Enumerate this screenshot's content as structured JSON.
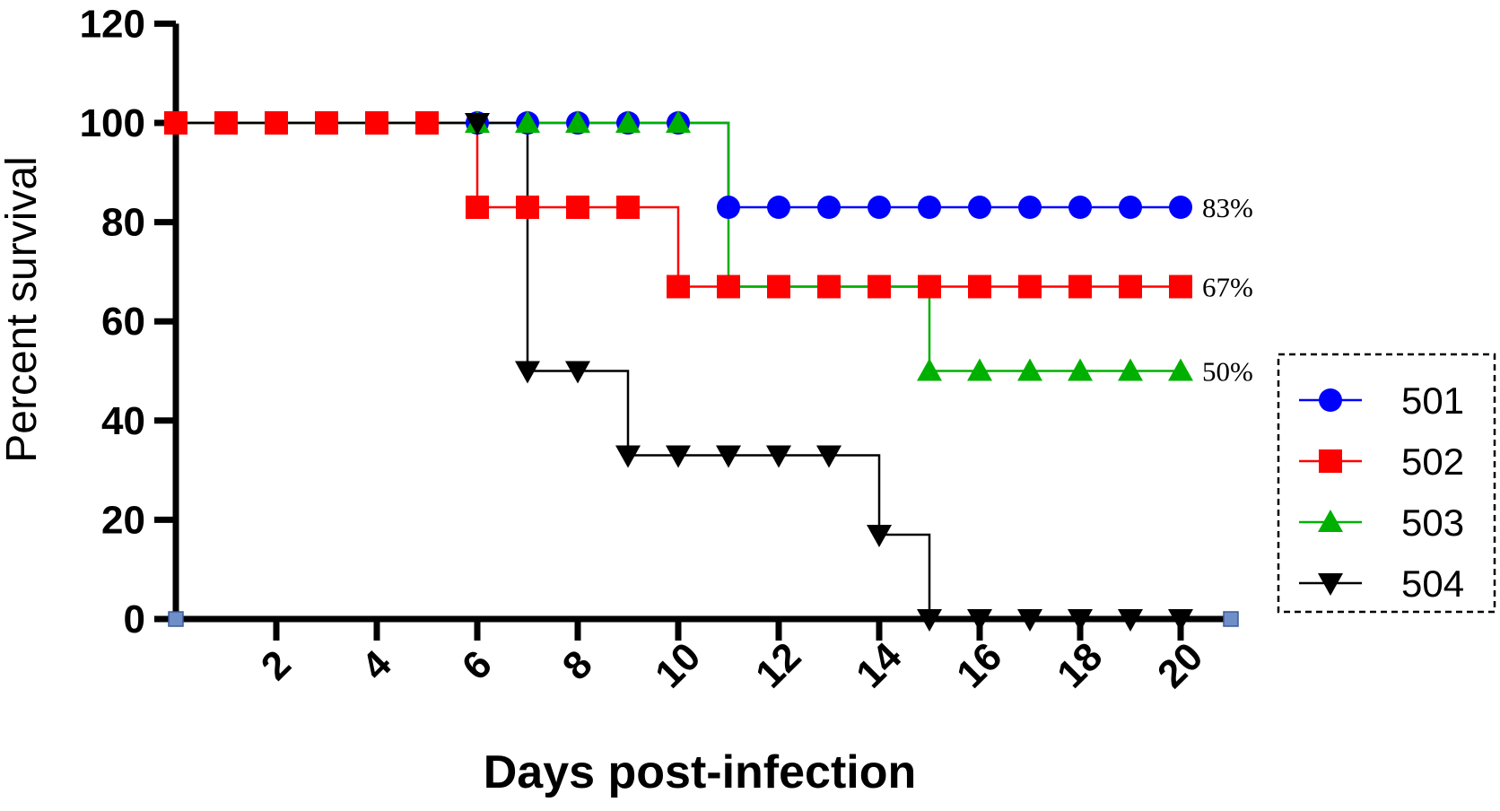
{
  "chart_data": {
    "type": "line",
    "subtype": "kaplan-meier step survival curve",
    "xlabel": "Days post-infection",
    "ylabel": "Percent survival",
    "xlim": [
      0,
      21
    ],
    "ylim": [
      0,
      120
    ],
    "x_ticks": [
      2,
      4,
      6,
      8,
      10,
      12,
      14,
      16,
      18,
      20
    ],
    "y_ticks": [
      0,
      20,
      40,
      60,
      80,
      100,
      120
    ],
    "grid": false,
    "legend_position": "right",
    "legend_style": "dashed border box",
    "series": [
      {
        "name": "501",
        "color": "#0000ff",
        "marker": "circle",
        "x": [
          0,
          1,
          2,
          3,
          4,
          5,
          6,
          7,
          8,
          9,
          10,
          11,
          12,
          13,
          14,
          15,
          16,
          17,
          18,
          19,
          20
        ],
        "y": [
          100,
          100,
          100,
          100,
          100,
          100,
          100,
          100,
          100,
          100,
          100,
          83,
          83,
          83,
          83,
          83,
          83,
          83,
          83,
          83,
          83
        ],
        "end_label": "83%"
      },
      {
        "name": "502",
        "color": "#ff0000",
        "marker": "square",
        "x": [
          0,
          1,
          2,
          3,
          4,
          5,
          6,
          7,
          8,
          9,
          10,
          11,
          12,
          13,
          14,
          15,
          16,
          17,
          18,
          19,
          20
        ],
        "y": [
          100,
          100,
          100,
          100,
          100,
          100,
          83,
          83,
          83,
          83,
          67,
          67,
          67,
          67,
          67,
          67,
          67,
          67,
          67,
          67,
          67
        ],
        "end_label": "67%"
      },
      {
        "name": "503",
        "color": "#00b000",
        "marker": "triangle-up",
        "x": [
          6,
          7,
          8,
          9,
          10,
          15,
          16,
          17,
          18,
          19,
          20
        ],
        "y": [
          100,
          100,
          100,
          100,
          100,
          50,
          50,
          50,
          50,
          50,
          50
        ],
        "step_points_x": [
          0,
          11,
          15,
          20
        ],
        "step_points_y": [
          100,
          67,
          50,
          50
        ],
        "end_label": "50%"
      },
      {
        "name": "504",
        "color": "#000000",
        "marker": "triangle-down",
        "x": [
          6,
          7,
          8,
          9,
          10,
          11,
          12,
          13,
          14,
          15,
          16,
          17,
          18,
          19,
          20
        ],
        "y": [
          100,
          50,
          50,
          33,
          33,
          33,
          33,
          33,
          17,
          0,
          0,
          0,
          0,
          0,
          0
        ],
        "step_points_x": [
          0,
          7,
          9,
          14,
          15,
          20
        ],
        "step_points_y": [
          100,
          50,
          33,
          17,
          0,
          0
        ]
      }
    ],
    "axis_end_markers_x": [
      0,
      21
    ]
  }
}
